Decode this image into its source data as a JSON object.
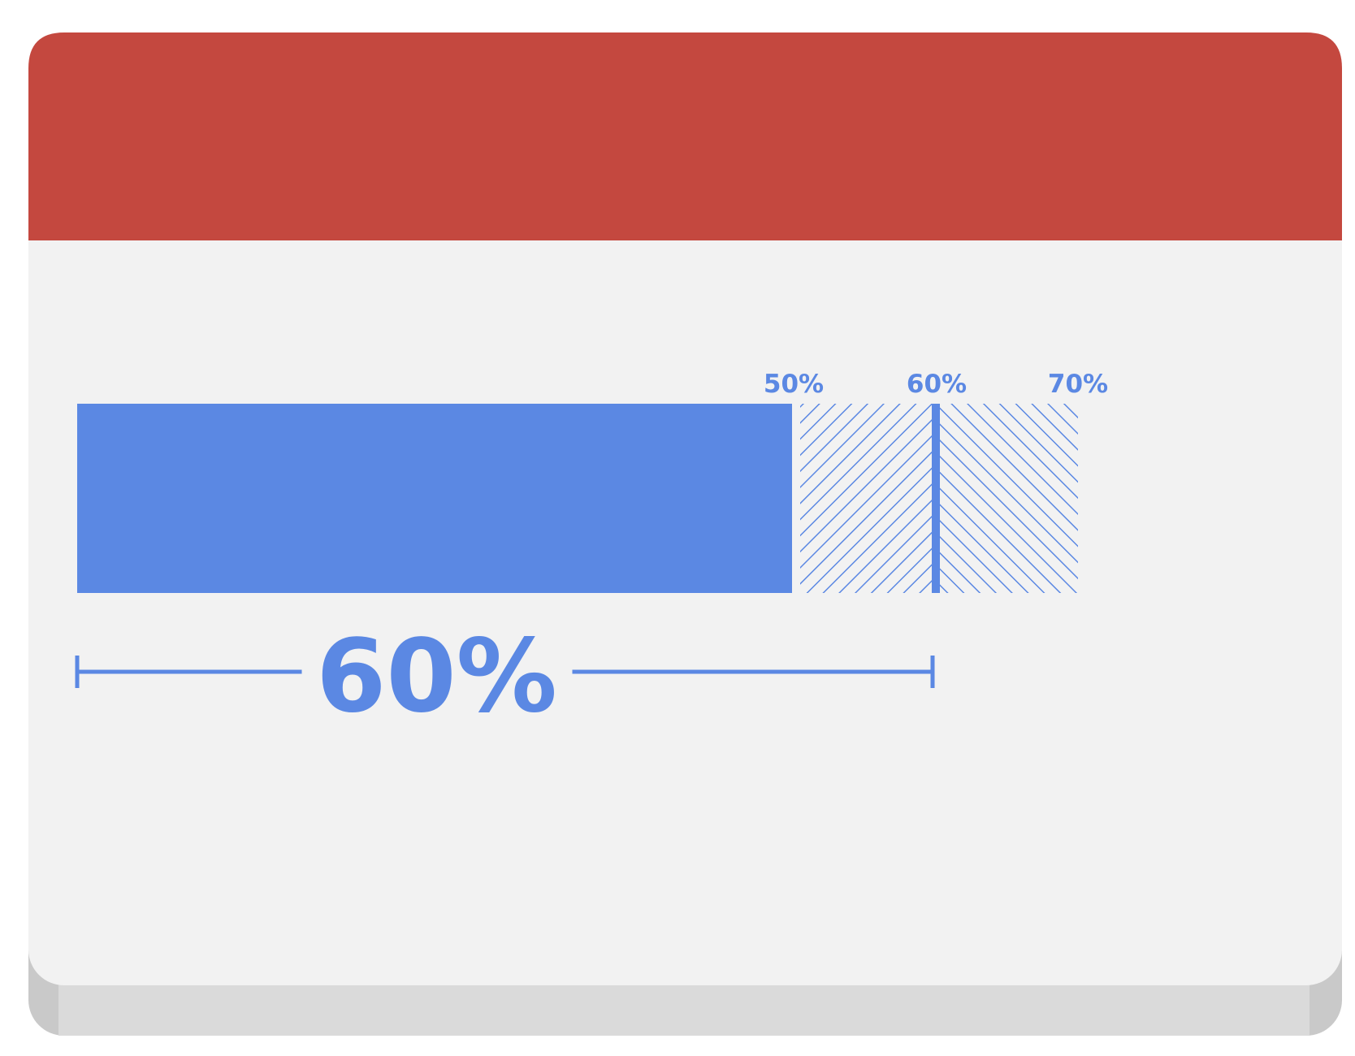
{
  "colors": {
    "header": "#c4483f",
    "card_body": "#f2f2f2",
    "card_shadow": "#dadada",
    "card_shadow_edge": "#c9c9c9",
    "accent": "#5b88e3"
  },
  "progress": {
    "filled_percent": 50,
    "marker_percent": 60,
    "range_end_percent": 70
  },
  "scale": {
    "tick_labels": [
      "50%",
      "60%",
      "70%"
    ]
  },
  "measure": {
    "label": "60%"
  }
}
